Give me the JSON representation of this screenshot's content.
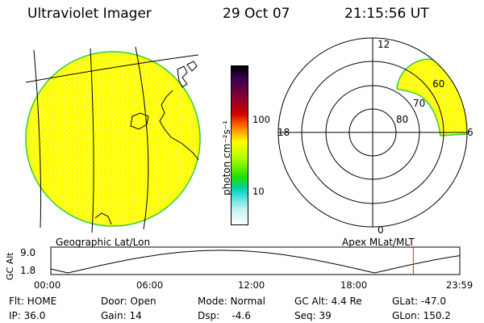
{
  "header": {
    "instrument": "Ultraviolet Imager",
    "date": "29 Oct 07",
    "time": "21:15:56 UT"
  },
  "colorbar": {
    "label": "photon cm⁻²s⁻¹",
    "tick_100": "100",
    "tick_10": "10",
    "colors": [
      "#000000",
      "#3a0050",
      "#8a0030",
      "#d00000",
      "#ff6000",
      "#ffb000",
      "#ffff00",
      "#b0ff00",
      "#20e000",
      "#00d0a0",
      "#40e0e0",
      "#c0f0f0",
      "#ffffff"
    ]
  },
  "left_panel": {
    "label": "Geographic Lat/Lon",
    "fill_color": "#ffff00",
    "edge_color": "#2ecc40"
  },
  "right_panel": {
    "label": "Apex MLat/MLT",
    "mlt_labels": {
      "top": "12",
      "bottom": "0",
      "left": "18",
      "right": "6"
    },
    "lat_labels": [
      "60",
      "70",
      "80"
    ],
    "fill_color": "#ffff00",
    "edge_color": "#2ecc40"
  },
  "timeline": {
    "ylabel": "GC Alt",
    "y_top": "9.0",
    "y_bottom": "1.8",
    "ticks": [
      "00:00",
      "06:00",
      "12:00",
      "18:00",
      "23:59"
    ],
    "marker_color": "#e02020",
    "current_time_hours": 21.27
  },
  "status": {
    "flt": "Flt: HOME",
    "ip": "IP: 36.0",
    "door": "Door: Open",
    "gain": "Gain: 14",
    "mode": "Mode: Normal",
    "dsp": "Dsp:    -4.6",
    "gc_alt": "GC Alt: 4.4 Re",
    "seq": "Seq: 39",
    "glat": "GLat: -47.0",
    "glon": "GLon: 150.2"
  }
}
